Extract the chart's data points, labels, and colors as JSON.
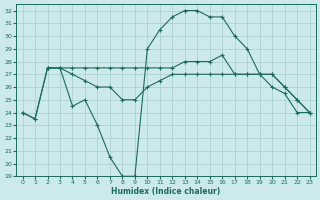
{
  "xlabel": "Humidex (Indice chaleur)",
  "bg_color": "#cceaea",
  "grid_color": "#aacccc",
  "line_color": "#1a6b5a",
  "xlim": [
    -0.5,
    23.5
  ],
  "ylim": [
    19,
    32.5
  ],
  "xticks": [
    0,
    1,
    2,
    3,
    4,
    5,
    6,
    7,
    8,
    9,
    10,
    11,
    12,
    13,
    14,
    15,
    16,
    17,
    18,
    19,
    20,
    21,
    22,
    23
  ],
  "yticks": [
    19,
    20,
    21,
    22,
    23,
    24,
    25,
    26,
    27,
    28,
    29,
    30,
    31,
    32
  ],
  "lines": [
    {
      "x": [
        0,
        1,
        2,
        3,
        4,
        5,
        6,
        7,
        8,
        9,
        10,
        11,
        12,
        13,
        14,
        15,
        16,
        17,
        18,
        19,
        20,
        21,
        22,
        23
      ],
      "y": [
        24,
        23.5,
        27.5,
        27.5,
        24.5,
        25,
        23,
        20.5,
        19,
        19,
        29,
        30.5,
        31.5,
        32,
        32,
        31.5,
        31.5,
        30,
        29,
        27,
        26,
        25.5,
        24,
        24
      ]
    },
    {
      "x": [
        0,
        1,
        2,
        3,
        4,
        5,
        6,
        7,
        8,
        9,
        10,
        11,
        12,
        13,
        14,
        15,
        16,
        17,
        18,
        19,
        20,
        21,
        22,
        23
      ],
      "y": [
        24,
        23.5,
        27.5,
        27.5,
        27.5,
        27.5,
        27.5,
        27.5,
        27.5,
        27.5,
        27.5,
        27.5,
        27.5,
        28,
        28,
        28,
        28.5,
        27,
        27,
        27,
        27,
        26,
        25,
        24
      ]
    },
    {
      "x": [
        2,
        3,
        4,
        5,
        6,
        7,
        8,
        9,
        10,
        11,
        12,
        13,
        14,
        15,
        16,
        17,
        18,
        19,
        20,
        21,
        22,
        23
      ],
      "y": [
        27.5,
        27.5,
        27,
        26.5,
        26,
        26,
        25,
        25,
        26,
        26.5,
        27,
        27,
        27,
        27,
        27,
        27,
        27,
        27,
        27,
        26,
        25,
        24
      ]
    }
  ]
}
